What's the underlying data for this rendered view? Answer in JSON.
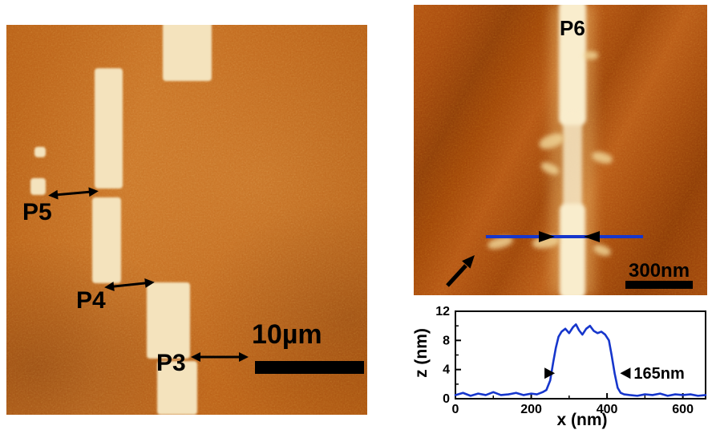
{
  "left_image": {
    "label_p5": "P5",
    "label_p4": "P4",
    "label_p3": "P3",
    "scale_bar": "10µm"
  },
  "right_image": {
    "label_p6": "P6",
    "scale_bar": "300nm"
  },
  "palette": {
    "afm_base": "#bc6418",
    "afm_bright_pad": "#f4e3bd",
    "profile_line": "#1636cc",
    "annotation": "#000000"
  },
  "chart_data": {
    "type": "line",
    "title": "",
    "xlabel": "x (nm)",
    "ylabel": "z (nm)",
    "xlim": [
      0,
      660
    ],
    "ylim": [
      0,
      12
    ],
    "xticks": [
      0,
      200,
      400,
      600
    ],
    "yticks": [
      0,
      4,
      8,
      12
    ],
    "xminor": [
      100,
      300,
      500
    ],
    "yminor": [
      2,
      6,
      10
    ],
    "grid": false,
    "legend": false,
    "series": [
      {
        "color": "#1636cc",
        "x": [
          0,
          20,
          40,
          60,
          80,
          100,
          120,
          140,
          160,
          180,
          200,
          215,
          230,
          240,
          250,
          258,
          265,
          272,
          280,
          290,
          300,
          310,
          318,
          326,
          335,
          345,
          355,
          365,
          375,
          385,
          395,
          405,
          412,
          420,
          428,
          436,
          445,
          460,
          480,
          500,
          520,
          540,
          560,
          580,
          600,
          620,
          640,
          660
        ],
        "y": [
          0.5,
          0.8,
          0.4,
          0.7,
          0.5,
          0.9,
          0.5,
          0.6,
          0.8,
          0.5,
          0.7,
          0.6,
          0.9,
          1.2,
          2.5,
          5.0,
          7.0,
          8.5,
          9.2,
          9.6,
          9.0,
          9.8,
          10.2,
          9.4,
          8.8,
          9.6,
          10.0,
          9.3,
          9.0,
          9.2,
          8.8,
          8.0,
          6.0,
          3.5,
          1.5,
          0.8,
          0.6,
          0.5,
          0.4,
          0.6,
          0.5,
          0.7,
          0.4,
          0.6,
          0.5,
          0.6,
          0.4,
          0.5
        ]
      }
    ],
    "annotation": {
      "label": "165nm",
      "arrow_pointing_right_x": 235,
      "arrow_pointing_left_x": 462,
      "arrow_z": 3.5
    }
  }
}
